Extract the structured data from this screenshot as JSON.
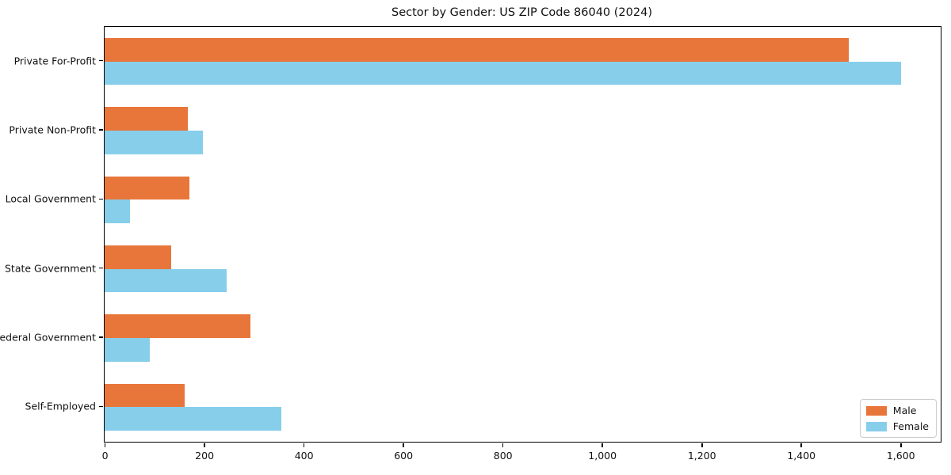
{
  "chart_data": {
    "type": "bar",
    "orientation": "horizontal",
    "title": "Sector by Gender: US ZIP Code 86040 (2024)",
    "categories": [
      "Private For-Profit",
      "Private Non-Profit",
      "Local Government",
      "State Government",
      "Federal Government",
      "Self-Employed"
    ],
    "series": [
      {
        "name": "Male",
        "color": "#E8763B",
        "values": [
          1496,
          167,
          170,
          134,
          293,
          161
        ]
      },
      {
        "name": "Female",
        "color": "#87CEEB",
        "values": [
          1601,
          198,
          51,
          246,
          91,
          356
        ]
      }
    ],
    "xlabel": "",
    "ylabel": "",
    "xlim": [
      0,
      1681
    ],
    "xticks": [
      0,
      200,
      400,
      600,
      800,
      1000,
      1200,
      1400,
      1600
    ],
    "xtick_labels": [
      "0",
      "200",
      "400",
      "600",
      "800",
      "1,000",
      "1,200",
      "1,400",
      "1,600"
    ],
    "legend": {
      "position": "lower right"
    },
    "grid": false,
    "background_color": "#FFFFFF",
    "spine_color": "#000000",
    "text_color": "#111111"
  }
}
